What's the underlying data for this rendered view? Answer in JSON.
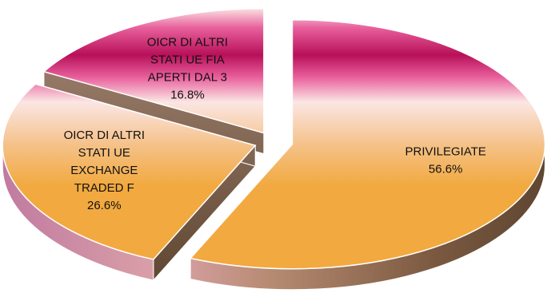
{
  "chart_data": {
    "type": "pie",
    "style": "3d-exploded",
    "legend": "none",
    "slices": [
      {
        "label": [
          "PRIVILEGIATE"
        ],
        "value": 56.6,
        "value_label": "56.6%"
      },
      {
        "label": [
          "OICR DI ALTRI",
          "STATI UE",
          "EXCHANGE",
          "TRADED F"
        ],
        "value": 26.6,
        "value_label": "26.6%"
      },
      {
        "label": [
          "OICR DI ALTRI",
          "STATI UE FIA",
          "APERTI DAL 3"
        ],
        "value": 16.8,
        "value_label": "16.8%"
      }
    ],
    "colors": {
      "dark": "#b8105a",
      "pink": "#e8609c",
      "light": "#fbe6e4",
      "orange": "#f2a93f",
      "side_dark": "#5e4631",
      "side_mid": "#b58a70",
      "side_pink": "#c07aa0"
    }
  }
}
